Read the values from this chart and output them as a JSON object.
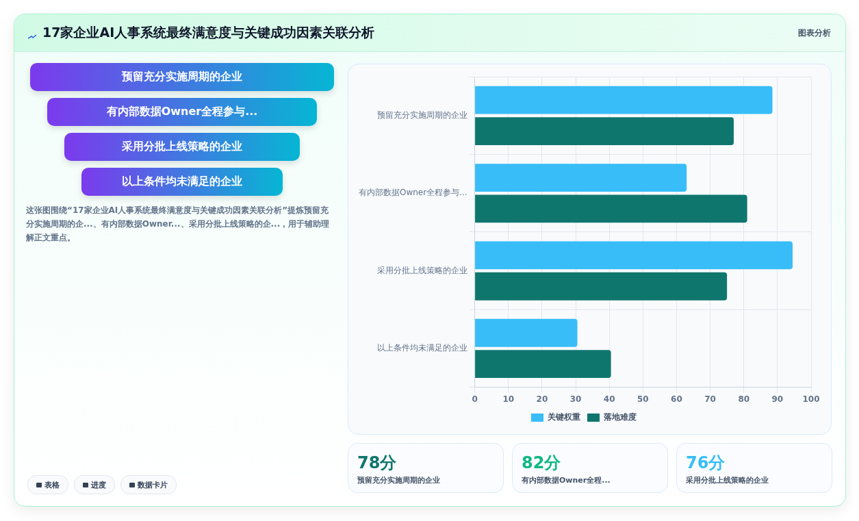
{
  "chart_data": [
    {
      "type": "other",
      "title": "17家企业AI人事系统最终满意度与关键成功因素关联分析",
      "subtitle": "图表分析",
      "categories": [
        "预留充分实施周期的企业",
        "有内部数据Owner全程参与...",
        "采用分批上线策略的企业",
        "以上条件均未满足的企业"
      ],
      "annotations": [
        "这张图围绕“17家企业AI人事系统最终满意度与关键成功因素关联分析”提炼预留充分实施周期的企...、有内部数据Owner...、采用分批上线策略的企...，用于辅助理解正文重点。",
        "表格",
        "进度",
        "数据卡片"
      ]
    },
    {
      "type": "bar",
      "orientation": "horizontal",
      "categories": [
        "预留充分实施周期的企业",
        "有内部数据Owner全程参与...",
        "采用分批上线策略的企业",
        "以上条件均未满足的企业"
      ],
      "series": [
        {
          "name": "关键权重",
          "color": "#38bdf8",
          "values": [
            88.5,
            63,
            94.5,
            30.5
          ]
        },
        {
          "name": "落地难度",
          "color": "#0f766e",
          "values": [
            77,
            81,
            75,
            40.5
          ]
        }
      ],
      "xlim": [
        0,
        100
      ],
      "xticks": [
        0,
        10,
        20,
        30,
        40,
        50,
        60,
        70,
        80,
        90,
        100
      ],
      "grid": true,
      "legend": "bottom"
    },
    {
      "type": "other",
      "categories": [
        "预留充分实施周期的企业",
        "有内部数据Owner全程...",
        "采用分批上线策略的企业"
      ],
      "annotations": [
        "78分",
        "82分",
        "76分"
      ]
    }
  ]
}
